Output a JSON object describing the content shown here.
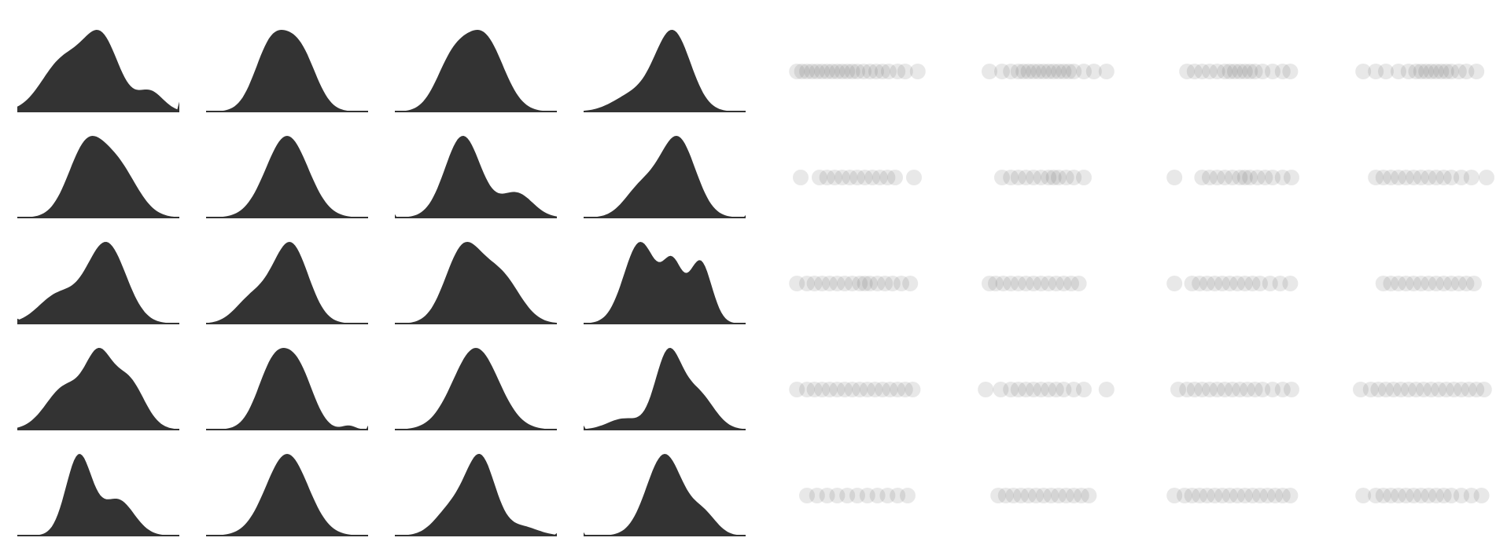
{
  "colors": {
    "background": "#ffffff",
    "density_fill": "#333333",
    "point_fill": "#5a5a5a"
  },
  "chart_data": [
    {
      "type": "area",
      "description_kind": "kernel-density small multiples",
      "grid": false,
      "axes_visible": false,
      "rows": 5,
      "cols": 4,
      "panels": [
        {
          "id": "r1c1",
          "peaks": [
            [
              0.28,
              0.13,
              0.7
            ],
            [
              0.52,
              0.11,
              1.0
            ],
            [
              0.82,
              0.08,
              0.28
            ]
          ],
          "tail_left": 0.0,
          "tail_right": 0.12
        },
        {
          "id": "r1c2",
          "peaks": [
            [
              0.4,
              0.1,
              0.95
            ],
            [
              0.58,
              0.1,
              0.85
            ]
          ],
          "tail_left": 0.0,
          "tail_right": 0.0
        },
        {
          "id": "r1c3",
          "peaks": [
            [
              0.35,
              0.1,
              0.6
            ],
            [
              0.55,
              0.12,
              1.0
            ]
          ],
          "tail_left": 0.0,
          "tail_right": 0.0
        },
        {
          "id": "r1c4",
          "peaks": [
            [
              0.3,
              0.12,
              0.2
            ],
            [
              0.55,
              0.11,
              1.0
            ]
          ],
          "tail_left": 0.0,
          "tail_right": 0.0
        },
        {
          "id": "r2c1",
          "peaks": [
            [
              0.42,
              0.11,
              0.95
            ],
            [
              0.62,
              0.12,
              0.7
            ]
          ],
          "tail_left": 0.0,
          "tail_right": 0.0
        },
        {
          "id": "r2c2",
          "peaks": [
            [
              0.5,
              0.13,
              1.0
            ]
          ],
          "tail_left": 0.0,
          "tail_right": 0.0
        },
        {
          "id": "r2c3",
          "peaks": [
            [
              0.42,
              0.11,
              1.0
            ],
            [
              0.75,
              0.1,
              0.3
            ]
          ],
          "tail_left": 0.04,
          "tail_right": 0.0
        },
        {
          "id": "r2c4",
          "peaks": [
            [
              0.35,
              0.1,
              0.35
            ],
            [
              0.58,
              0.11,
              1.0
            ]
          ],
          "tail_left": 0.0,
          "tail_right": 0.03
        },
        {
          "id": "r3c1",
          "peaks": [
            [
              0.25,
              0.12,
              0.35
            ],
            [
              0.55,
              0.12,
              1.0
            ]
          ],
          "tail_left": 0.06,
          "tail_right": 0.0
        },
        {
          "id": "r3c2",
          "peaks": [
            [
              0.28,
              0.1,
              0.3
            ],
            [
              0.52,
              0.11,
              1.0
            ]
          ],
          "tail_left": 0.0,
          "tail_right": 0.0
        },
        {
          "id": "r3c3",
          "peaks": [
            [
              0.42,
              0.11,
              1.0
            ],
            [
              0.65,
              0.12,
              0.65
            ]
          ],
          "tail_left": 0.0,
          "tail_right": 0.0
        },
        {
          "id": "r3c4",
          "peaks": [
            [
              0.35,
              0.1,
              0.85
            ],
            [
              0.55,
              0.06,
              0.55
            ],
            [
              0.72,
              0.07,
              0.65
            ]
          ],
          "tail_left": 0.0,
          "tail_right": 0.0
        },
        {
          "id": "r4c1",
          "peaks": [
            [
              0.3,
              0.12,
              0.6
            ],
            [
              0.5,
              0.08,
              0.85
            ],
            [
              0.68,
              0.1,
              0.7
            ]
          ],
          "tail_left": 0.0,
          "tail_right": 0.0
        },
        {
          "id": "r4c2",
          "peaks": [
            [
              0.42,
              0.1,
              1.0
            ],
            [
              0.58,
              0.09,
              0.75
            ],
            [
              0.88,
              0.04,
              0.06
            ]
          ],
          "tail_left": 0.0,
          "tail_right": 0.05
        },
        {
          "id": "r4c3",
          "peaks": [
            [
              0.5,
              0.14,
              1.0
            ]
          ],
          "tail_left": 0.0,
          "tail_right": 0.0
        },
        {
          "id": "r4c4",
          "peaks": [
            [
              0.25,
              0.1,
              0.15
            ],
            [
              0.52,
              0.08,
              1.0
            ],
            [
              0.7,
              0.1,
              0.5
            ]
          ],
          "tail_left": 0.05,
          "tail_right": 0.0
        },
        {
          "id": "r5c1",
          "peaks": [
            [
              0.38,
              0.08,
              1.0
            ],
            [
              0.62,
              0.1,
              0.45
            ]
          ],
          "tail_left": 0.0,
          "tail_right": 0.0
        },
        {
          "id": "r5c2",
          "peaks": [
            [
              0.5,
              0.13,
              1.0
            ]
          ],
          "tail_left": 0.0,
          "tail_right": 0.0
        },
        {
          "id": "r5c3",
          "peaks": [
            [
              0.35,
              0.1,
              0.35
            ],
            [
              0.53,
              0.09,
              1.0
            ],
            [
              0.78,
              0.1,
              0.12
            ]
          ],
          "tail_left": 0.0,
          "tail_right": 0.03
        },
        {
          "id": "r5c4",
          "peaks": [
            [
              0.5,
              0.11,
              1.0
            ],
            [
              0.74,
              0.08,
              0.25
            ]
          ],
          "tail_left": 0.04,
          "tail_right": 0.0
        }
      ]
    },
    {
      "type": "scatter",
      "description_kind": "1-D strip plots with translucent points",
      "grid": false,
      "axes_visible": false,
      "rows": 5,
      "cols": 4,
      "panels": [
        {
          "id": "s-r1c1",
          "values": [
            0.02,
            0.06,
            0.1,
            0.14,
            0.18,
            0.22,
            0.26,
            0.3,
            0.34,
            0.38,
            0.42,
            0.46,
            0.5,
            0.55,
            0.6,
            0.65,
            0.7,
            0.75,
            0.82,
            0.88,
            0.98
          ]
        },
        {
          "id": "s-r1c2",
          "values": [
            0.05,
            0.15,
            0.22,
            0.28,
            0.32,
            0.36,
            0.4,
            0.44,
            0.48,
            0.52,
            0.56,
            0.6,
            0.64,
            0.68,
            0.72,
            0.8,
            0.88,
            0.98
          ]
        },
        {
          "id": "s-r1c3",
          "values": [
            0.12,
            0.18,
            0.24,
            0.3,
            0.36,
            0.42,
            0.46,
            0.5,
            0.54,
            0.58,
            0.62,
            0.66,
            0.72,
            0.8,
            0.88,
            0.94
          ]
        },
        {
          "id": "s-r1c4",
          "values": [
            0.02,
            0.12,
            0.2,
            0.3,
            0.38,
            0.44,
            0.48,
            0.52,
            0.56,
            0.6,
            0.64,
            0.68,
            0.72,
            0.78,
            0.84,
            0.92
          ]
        },
        {
          "id": "s-r2c1",
          "values": [
            0.05,
            0.2,
            0.26,
            0.32,
            0.38,
            0.44,
            0.5,
            0.56,
            0.62,
            0.68,
            0.74,
            0.8,
            0.95
          ]
        },
        {
          "id": "s-r2c2",
          "values": [
            0.15,
            0.22,
            0.28,
            0.34,
            0.4,
            0.46,
            0.52,
            0.56,
            0.6,
            0.66,
            0.72,
            0.8
          ]
        },
        {
          "id": "s-r2c3",
          "values": [
            0.02,
            0.24,
            0.3,
            0.36,
            0.42,
            0.48,
            0.54,
            0.58,
            0.62,
            0.68,
            0.74,
            0.8,
            0.88,
            0.95
          ]
        },
        {
          "id": "s-r2c4",
          "values": [
            0.12,
            0.18,
            0.24,
            0.3,
            0.36,
            0.42,
            0.48,
            0.54,
            0.6,
            0.66,
            0.72,
            0.8,
            0.88,
            1.0
          ]
        },
        {
          "id": "s-r3c1",
          "values": [
            0.02,
            0.1,
            0.16,
            0.22,
            0.28,
            0.34,
            0.4,
            0.46,
            0.52,
            0.56,
            0.6,
            0.66,
            0.72,
            0.78,
            0.85,
            0.92
          ]
        },
        {
          "id": "s-r3c2",
          "values": [
            0.05,
            0.1,
            0.16,
            0.22,
            0.28,
            0.34,
            0.4,
            0.46,
            0.52,
            0.58,
            0.64,
            0.7,
            0.76
          ]
        },
        {
          "id": "s-r3c3",
          "values": [
            0.02,
            0.16,
            0.22,
            0.28,
            0.34,
            0.4,
            0.46,
            0.52,
            0.58,
            0.64,
            0.7,
            0.78,
            0.86,
            0.94
          ]
        },
        {
          "id": "s-r3c4",
          "values": [
            0.18,
            0.24,
            0.3,
            0.36,
            0.42,
            0.48,
            0.54,
            0.6,
            0.66,
            0.72,
            0.78,
            0.84,
            0.9
          ]
        },
        {
          "id": "s-r4c1",
          "values": [
            0.02,
            0.1,
            0.16,
            0.22,
            0.28,
            0.34,
            0.4,
            0.46,
            0.52,
            0.58,
            0.64,
            0.7,
            0.76,
            0.82,
            0.88,
            0.94
          ]
        },
        {
          "id": "s-r4c2",
          "values": [
            0.02,
            0.14,
            0.22,
            0.28,
            0.34,
            0.4,
            0.46,
            0.52,
            0.58,
            0.64,
            0.72,
            0.8,
            0.98
          ]
        },
        {
          "id": "s-r4c3",
          "values": [
            0.05,
            0.12,
            0.18,
            0.24,
            0.3,
            0.36,
            0.42,
            0.48,
            0.54,
            0.6,
            0.66,
            0.72,
            0.8,
            0.88,
            0.95
          ]
        },
        {
          "id": "s-r4c4",
          "values": [
            0.0,
            0.08,
            0.14,
            0.2,
            0.26,
            0.32,
            0.38,
            0.44,
            0.5,
            0.56,
            0.62,
            0.68,
            0.74,
            0.8,
            0.86,
            0.92,
            0.98
          ]
        },
        {
          "id": "s-r5c1",
          "values": [
            0.1,
            0.18,
            0.26,
            0.34,
            0.42,
            0.5,
            0.58,
            0.66,
            0.74,
            0.82,
            0.9
          ]
        },
        {
          "id": "s-r5c2",
          "values": [
            0.12,
            0.18,
            0.24,
            0.3,
            0.36,
            0.42,
            0.48,
            0.54,
            0.6,
            0.66,
            0.72,
            0.78,
            0.84
          ]
        },
        {
          "id": "s-r5c3",
          "values": [
            0.02,
            0.1,
            0.16,
            0.22,
            0.28,
            0.34,
            0.4,
            0.46,
            0.52,
            0.58,
            0.64,
            0.7,
            0.76,
            0.82,
            0.88,
            0.94
          ]
        },
        {
          "id": "s-r5c4",
          "values": [
            0.02,
            0.12,
            0.18,
            0.24,
            0.3,
            0.36,
            0.42,
            0.48,
            0.54,
            0.6,
            0.66,
            0.72,
            0.8,
            0.88,
            0.96
          ]
        }
      ]
    }
  ]
}
